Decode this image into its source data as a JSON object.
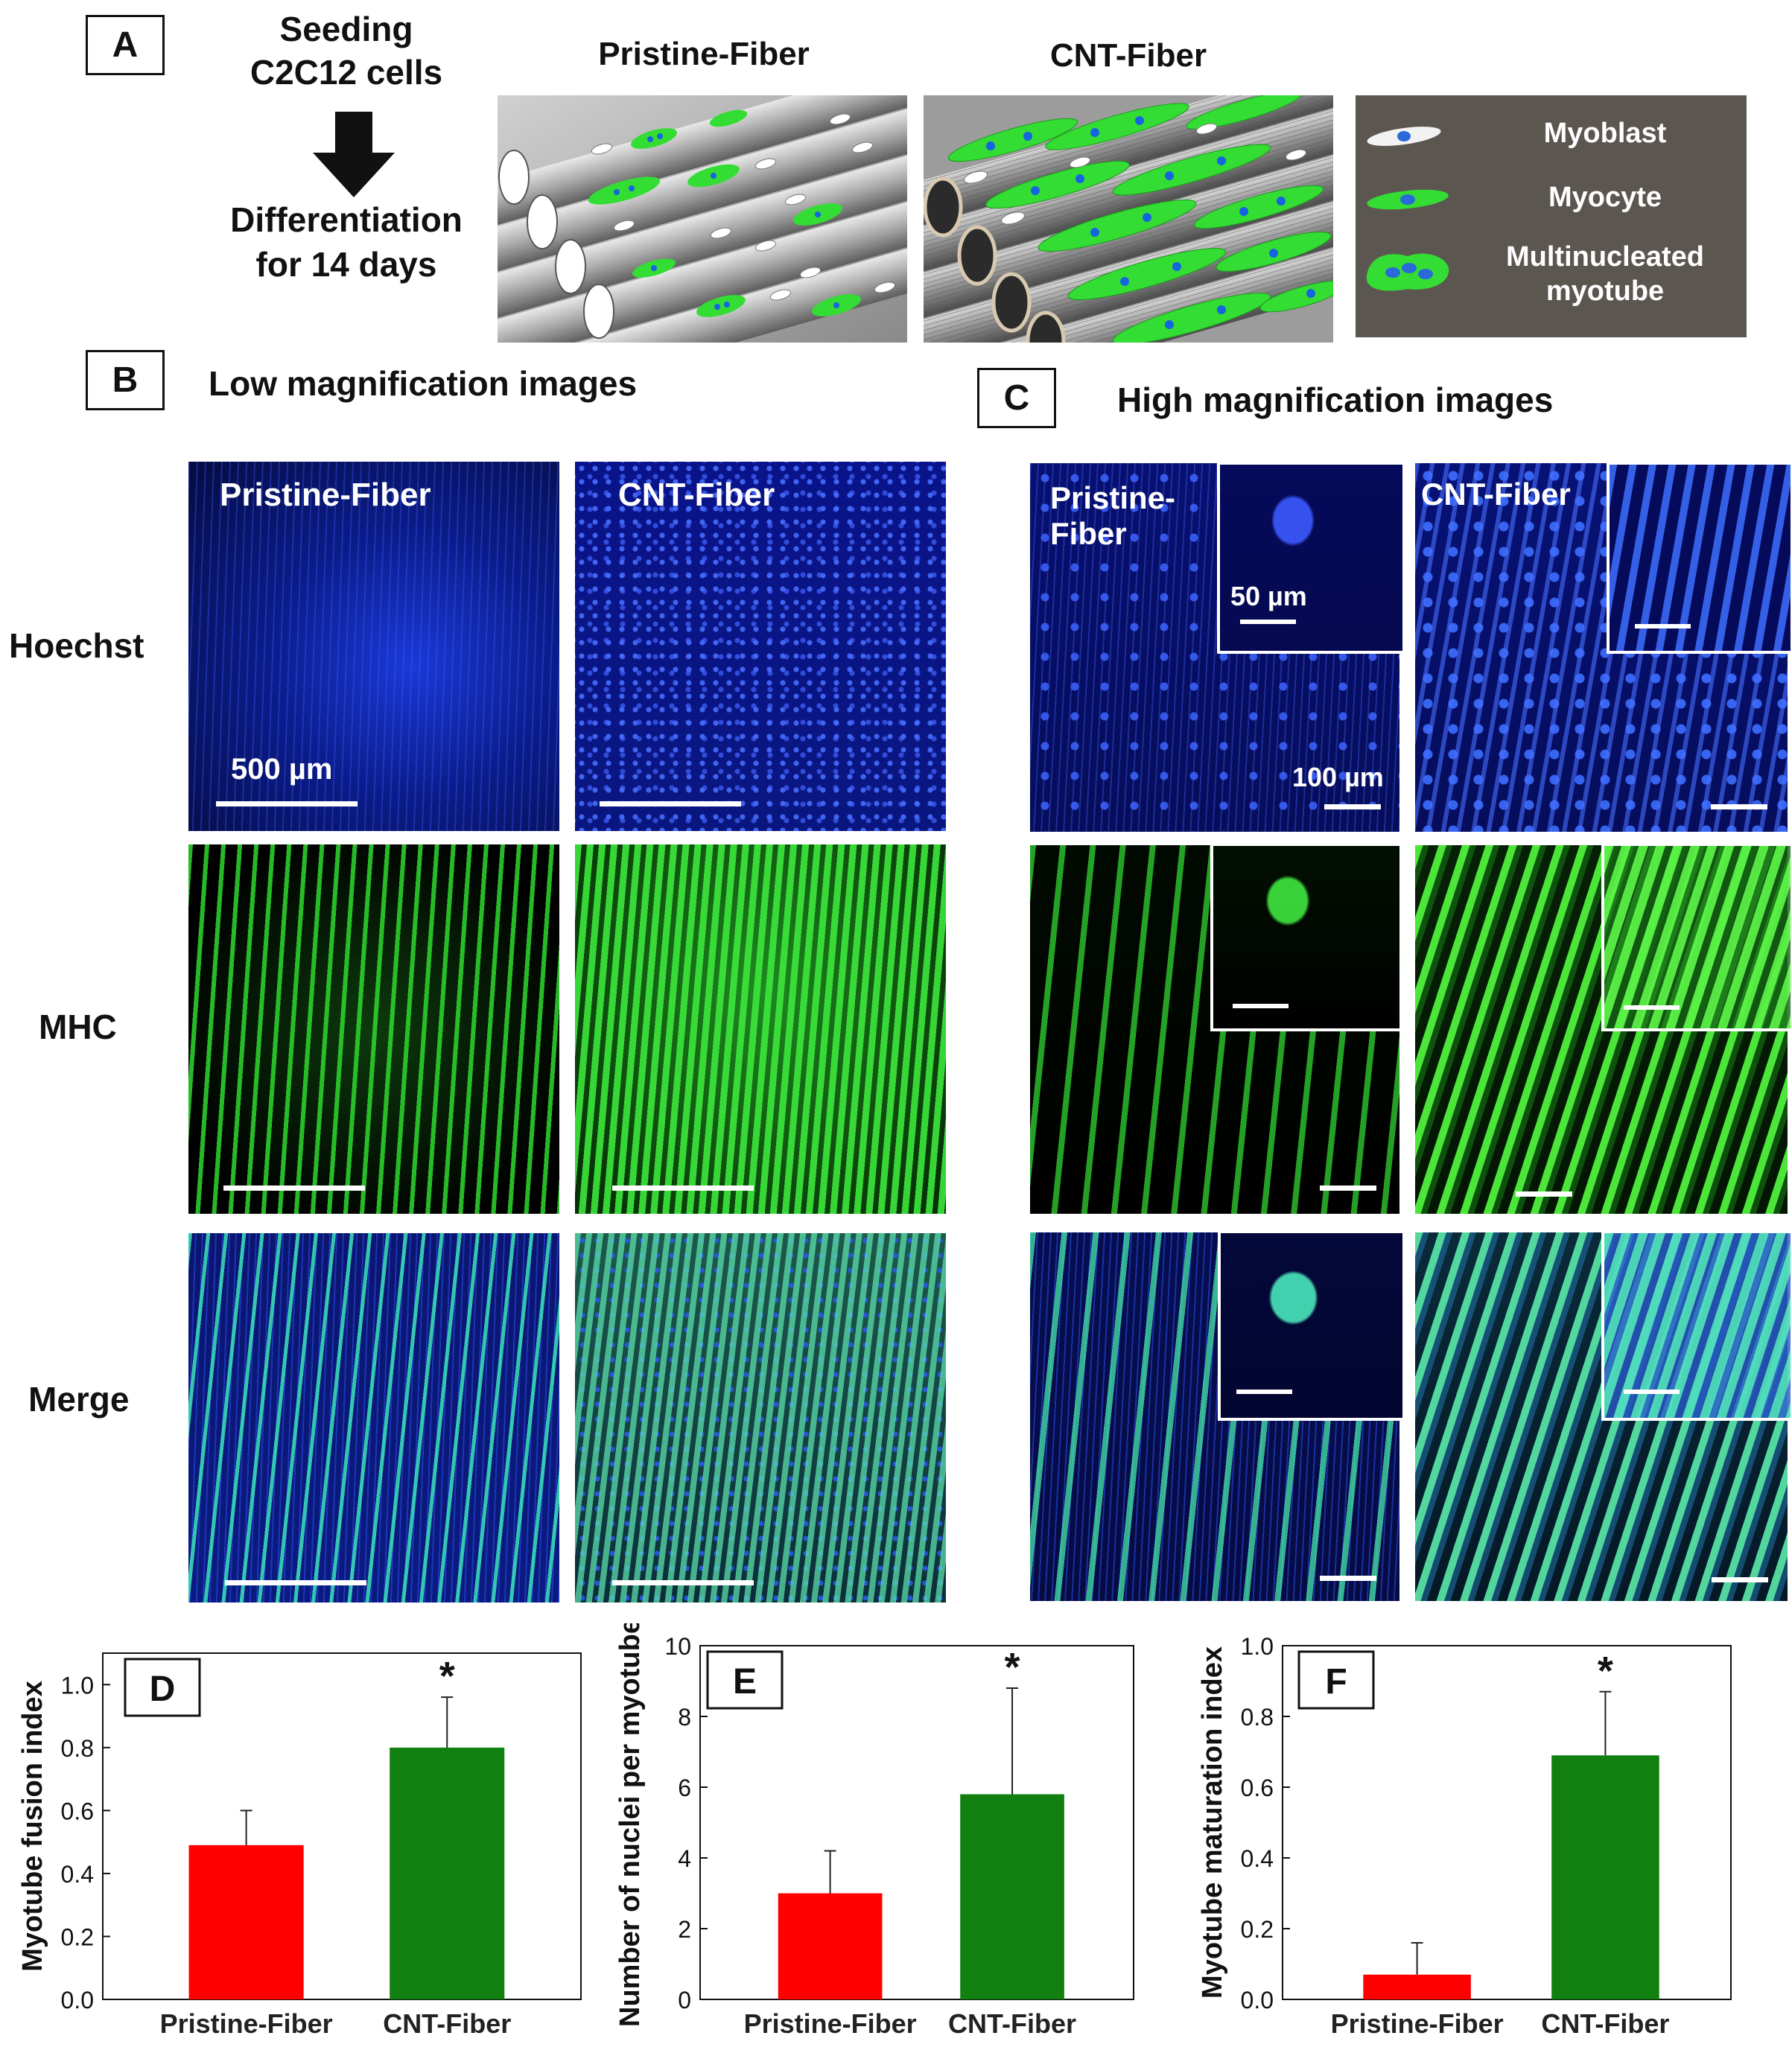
{
  "panelA": {
    "letter": "A",
    "step1": [
      "Seeding",
      "C2C12 cells"
    ],
    "step2": [
      "Differentiation",
      "for 14 days"
    ],
    "title_pristine": "Pristine-Fiber",
    "title_cnt": "CNT-Fiber",
    "legend": {
      "myoblast": "Myoblast",
      "myocyte": "Myocyte",
      "myotube": [
        "Multinucleated",
        "myotube"
      ]
    }
  },
  "panelB": {
    "letter": "B",
    "title": "Low magnification images",
    "col_pristine": "Pristine-Fiber",
    "col_cnt": "CNT-Fiber",
    "scale": "500 µm"
  },
  "panelC": {
    "letter": "C",
    "title": "High magnification images",
    "col_pristine": [
      "Pristine-",
      "Fiber"
    ],
    "col_cnt": "CNT-Fiber",
    "scale_main": "100 µm",
    "scale_inset": "50 µm"
  },
  "rows": {
    "hoechst": "Hoechst",
    "mhc": "MHC",
    "merge": "Merge"
  },
  "colors": {
    "pristine": "#ff0000",
    "cnt": "#118011",
    "hoechst": "#0a1a8c",
    "mhc": "#2ed82e",
    "legend_bg": "#5c5650"
  },
  "chart_data": [
    {
      "panel": "D",
      "type": "bar",
      "categories": [
        "Pristine-Fiber",
        "CNT-Fiber"
      ],
      "values": [
        0.49,
        0.8
      ],
      "errors": [
        0.11,
        0.16
      ],
      "ylabel": "Myotube fusion index",
      "ylim": [
        0,
        1.1
      ],
      "yticks": [
        "0.0",
        "0.2",
        "0.4",
        "0.6",
        "0.8",
        "1.0"
      ],
      "significance": [
        "",
        "*"
      ]
    },
    {
      "panel": "E",
      "type": "bar",
      "categories": [
        "Pristine-Fiber",
        "CNT-Fiber"
      ],
      "values": [
        3.0,
        5.8
      ],
      "errors": [
        1.2,
        3.0
      ],
      "ylabel": "Number of nuclei per myotube",
      "ylim": [
        0,
        10
      ],
      "yticks": [
        "0",
        "2",
        "4",
        "6",
        "8",
        "10"
      ],
      "significance": [
        "",
        "*"
      ]
    },
    {
      "panel": "F",
      "type": "bar",
      "categories": [
        "Pristine-Fiber",
        "CNT-Fiber"
      ],
      "values": [
        0.07,
        0.69
      ],
      "errors": [
        0.09,
        0.18
      ],
      "ylabel": "Myotube maturation index",
      "ylim": [
        0,
        1.0
      ],
      "yticks": [
        "0.0",
        "0.2",
        "0.4",
        "0.6",
        "0.8",
        "1.0"
      ],
      "significance": [
        "",
        "*"
      ]
    }
  ]
}
